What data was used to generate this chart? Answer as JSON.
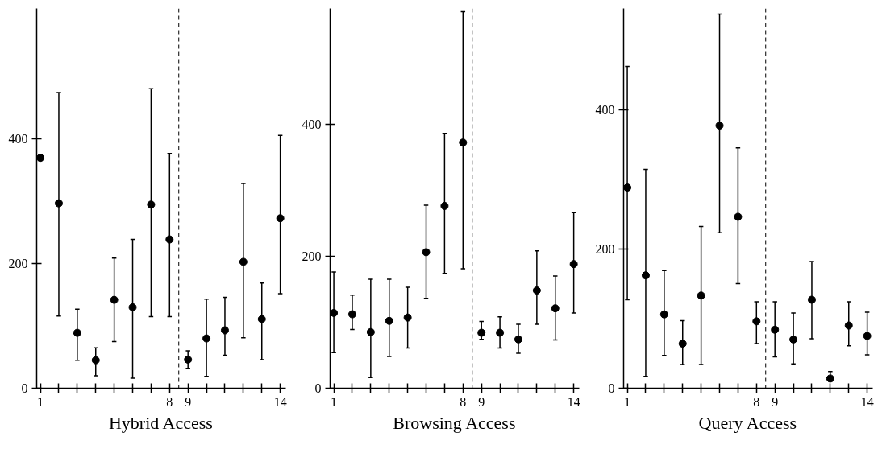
{
  "chart_data": [
    {
      "type": "scatter",
      "xlabel": "Hybrid Access",
      "marker": "circle",
      "grid": false,
      "color": "#000000",
      "x": [
        1,
        2,
        3,
        4,
        5,
        6,
        7,
        8,
        9,
        10,
        11,
        12,
        13,
        14
      ],
      "values": [
        370,
        297,
        89,
        45,
        142,
        130,
        295,
        239,
        46,
        80,
        93,
        203,
        111,
        273
      ],
      "errors": [
        null,
        [
          116,
          475
        ],
        [
          45,
          127
        ],
        [
          20,
          65
        ],
        [
          75,
          209
        ],
        [
          16,
          239
        ],
        [
          115,
          481
        ],
        [
          115,
          377
        ],
        [
          32,
          60
        ],
        [
          19,
          143
        ],
        [
          53,
          146
        ],
        [
          81,
          329
        ],
        [
          46,
          169
        ],
        [
          152,
          406
        ]
      ],
      "xlim": [
        0.8,
        14.3
      ],
      "ylim": [
        0,
        610
      ],
      "xticks": [
        1,
        {
          "value": 2,
          "label": null
        },
        {
          "value": 3,
          "label": null
        },
        {
          "value": 4,
          "label": null
        },
        {
          "value": 5,
          "label": null
        },
        {
          "value": 6,
          "label": null
        },
        {
          "value": 7,
          "label": null
        },
        8,
        9,
        {
          "value": 10,
          "label": null
        },
        {
          "value": 11,
          "label": null
        },
        {
          "value": 12,
          "label": null
        },
        {
          "value": 13,
          "label": null
        },
        14
      ],
      "yticks": [
        0,
        200,
        400
      ],
      "ref_lines": [
        {
          "axis": "x",
          "value": 8.5,
          "line_style": "dashed"
        }
      ]
    },
    {
      "type": "scatter",
      "xlabel": "Browsing Access",
      "marker": "circle",
      "grid": false,
      "color": "#000000",
      "x": [
        1,
        2,
        3,
        4,
        5,
        6,
        7,
        8,
        9,
        10,
        11,
        12,
        13,
        14
      ],
      "values": [
        114,
        112,
        85,
        102,
        107,
        206,
        276,
        372,
        84,
        84,
        74,
        148,
        121,
        188
      ],
      "errors": [
        [
          54,
          176
        ],
        [
          89,
          141
        ],
        [
          16,
          165
        ],
        [
          48,
          165
        ],
        [
          61,
          153
        ],
        [
          136,
          277
        ],
        [
          174,
          386
        ],
        [
          181,
          570
        ],
        [
          74,
          101
        ],
        [
          61,
          108
        ],
        [
          53,
          97
        ],
        [
          97,
          208
        ],
        [
          73,
          170
        ],
        [
          114,
          266
        ]
      ],
      "xlim": [
        0.8,
        14.3
      ],
      "ylim": [
        0,
        575
      ],
      "xticks": [
        1,
        {
          "value": 2,
          "label": null
        },
        {
          "value": 3,
          "label": null
        },
        {
          "value": 4,
          "label": null
        },
        {
          "value": 5,
          "label": null
        },
        {
          "value": 6,
          "label": null
        },
        {
          "value": 7,
          "label": null
        },
        8,
        9,
        {
          "value": 10,
          "label": null
        },
        {
          "value": 11,
          "label": null
        },
        {
          "value": 12,
          "label": null
        },
        {
          "value": 13,
          "label": null
        },
        14
      ],
      "yticks": [
        0,
        200,
        400
      ],
      "ref_lines": [
        {
          "axis": "x",
          "value": 8.5,
          "line_style": "dashed"
        }
      ]
    },
    {
      "type": "scatter",
      "xlabel": "Query Access",
      "marker": "circle",
      "grid": false,
      "color": "#000000",
      "x": [
        1,
        2,
        3,
        4,
        5,
        6,
        7,
        8,
        9,
        10,
        11,
        12,
        13,
        14
      ],
      "values": [
        288,
        162,
        106,
        64,
        133,
        377,
        246,
        96,
        84,
        70,
        127,
        14,
        90,
        75
      ],
      "errors": [
        [
          127,
          462
        ],
        [
          17,
          314
        ],
        [
          47,
          169
        ],
        [
          34,
          97
        ],
        [
          34,
          232
        ],
        [
          223,
          537
        ],
        [
          150,
          345
        ],
        [
          64,
          124
        ],
        [
          45,
          124
        ],
        [
          35,
          108
        ],
        [
          71,
          182
        ],
        [
          10,
          24
        ],
        [
          61,
          124
        ],
        [
          48,
          109
        ]
      ],
      "xlim": [
        0.8,
        14.3
      ],
      "ylim": [
        0,
        545
      ],
      "xticks": [
        1,
        {
          "value": 2,
          "label": null
        },
        {
          "value": 3,
          "label": null
        },
        {
          "value": 4,
          "label": null
        },
        {
          "value": 5,
          "label": null
        },
        {
          "value": 6,
          "label": null
        },
        {
          "value": 7,
          "label": null
        },
        8,
        9,
        {
          "value": 10,
          "label": null
        },
        {
          "value": 11,
          "label": null
        },
        {
          "value": 12,
          "label": null
        },
        {
          "value": 13,
          "label": null
        },
        14
      ],
      "yticks": [
        0,
        200,
        400
      ],
      "ref_lines": [
        {
          "axis": "x",
          "value": 8.5,
          "line_style": "dashed"
        }
      ]
    }
  ]
}
